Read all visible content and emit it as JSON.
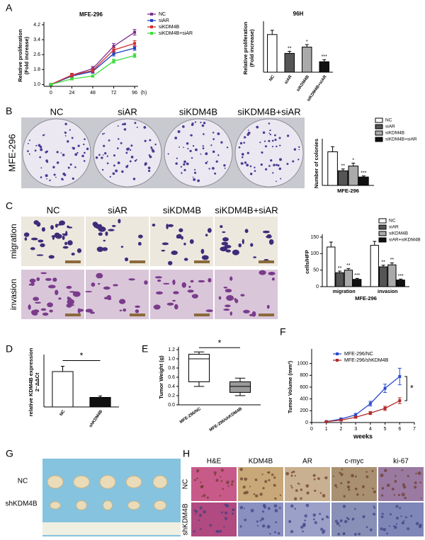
{
  "figure": {
    "panels": [
      "A",
      "B",
      "C",
      "D",
      "E",
      "F",
      "G",
      "H"
    ],
    "B_images": {
      "columns": [
        "NC",
        "siAR",
        "siKDM4B",
        "siKDM4B+siAR"
      ],
      "row": "MFE-296"
    },
    "C_images": {
      "columns": [
        "NC",
        "siAR",
        "siKDM4B",
        "siKDM4B+siAR"
      ],
      "rows": [
        "migration",
        "invasion"
      ]
    },
    "G_image": {
      "rows": [
        "NC",
        "shKDM4B"
      ]
    },
    "H_images": {
      "columns": [
        "H&E",
        "KDM4B",
        "AR",
        "c-myc",
        "ki-67"
      ],
      "rows": [
        "NC",
        "shKDM4B"
      ]
    }
  },
  "chart_data": [
    {
      "type": "line",
      "title": "MFE-296",
      "ylabel": [
        "Relative proliferation",
        "(Fold increase)"
      ],
      "xlabel": "(h)",
      "x": [
        0,
        24,
        48,
        72,
        96
      ],
      "xlim": [
        -8,
        100
      ],
      "xticks": [
        0,
        24,
        48,
        72,
        96
      ],
      "ylim": [
        0.9,
        4.2
      ],
      "yticks": [
        {
          "value": 1,
          "label": "1.0"
        },
        1.8,
        2.6,
        3.4,
        4.2
      ],
      "series": [
        {
          "name": "NC",
          "color": "#7b2d8e",
          "values": [
            1,
            1.5,
            1.85,
            3.05,
            3.8
          ],
          "errors": [
            0.03,
            0.1,
            0.12,
            0.15,
            0.15
          ]
        },
        {
          "name": "siAR",
          "color": "#1f3fbf",
          "values": [
            1,
            1.45,
            1.7,
            2.65,
            2.95
          ],
          "errors": [
            0.03,
            0.08,
            0.1,
            0.12,
            0.12
          ]
        },
        {
          "name": "siKDM4B",
          "color": "#d03030",
          "values": [
            1,
            1.5,
            1.75,
            2.85,
            3.2
          ],
          "errors": [
            0.03,
            0.1,
            0.1,
            0.12,
            0.15
          ]
        },
        {
          "name": "siKDM4B+siAR",
          "color": "#3ddc3d",
          "values": [
            1,
            1.3,
            1.45,
            2.25,
            2.55
          ],
          "errors": [
            0.03,
            0.06,
            0.06,
            0.1,
            0.1
          ]
        }
      ]
    },
    {
      "type": "bar",
      "title": "96H",
      "ylabel": [
        "Relative proliferation",
        "(Fold increase)"
      ],
      "categories": [
        "NC",
        "siAR",
        "siKDM4B",
        "siKDM4B+siAR"
      ],
      "values": [
        3.8,
        2.9,
        3.2,
        2.5
      ],
      "errors": [
        0.2,
        0.1,
        0.12,
        0.1
      ],
      "colors": [
        "#ffffff",
        "#555555",
        "#aaaaaa",
        "#111111"
      ],
      "significance": [
        null,
        "**",
        "*",
        "***"
      ],
      "ylim": [
        2,
        4.3
      ]
    },
    {
      "type": "bar",
      "ylabel": "Number of colonies",
      "xlabel": "MFE-296",
      "ylim": [
        0,
        600
      ],
      "series": [
        {
          "name": "NC",
          "color": "#ffffff",
          "values": [
            460
          ],
          "errors": [
            70
          ],
          "significance": [
            null
          ]
        },
        {
          "name": "siAR",
          "color": "#555555",
          "values": [
            200
          ],
          "errors": [
            25
          ],
          "significance": [
            "**"
          ]
        },
        {
          "name": "siKDM4B",
          "color": "#aaaaaa",
          "values": [
            265
          ],
          "errors": [
            40
          ],
          "significance": [
            "*"
          ]
        },
        {
          "name": "siKDM4B+siAR",
          "color": "#111111",
          "values": [
            115
          ],
          "errors": [
            15
          ],
          "significance": [
            "***"
          ]
        }
      ]
    },
    {
      "type": "bar",
      "ylabel": "cells/HFP",
      "xlabel": "MFE-296",
      "categories": [
        "migration",
        "invasion"
      ],
      "ylim": [
        0,
        150
      ],
      "yticks": [
        0,
        50,
        100,
        150
      ],
      "series": [
        {
          "name": "NC",
          "color": "#ffffff",
          "values": [
            120,
            125
          ],
          "errors": [
            15,
            12
          ],
          "significance": [
            null,
            null
          ]
        },
        {
          "name": "siAR",
          "color": "#555555",
          "values": [
            42,
            60
          ],
          "errors": [
            5,
            5
          ],
          "significance": [
            "**",
            "**"
          ]
        },
        {
          "name": "siKDM4B",
          "color": "#aaaaaa",
          "values": [
            50,
            66
          ],
          "errors": [
            5,
            6
          ],
          "significance": [
            "**",
            "**"
          ]
        },
        {
          "name": "siAR+siKDM4B",
          "color": "#111111",
          "values": [
            22,
            20
          ],
          "errors": [
            3,
            3
          ],
          "significance": [
            "***",
            "***"
          ]
        }
      ]
    },
    {
      "type": "bar",
      "ylabel": [
        "relative KDM4B expression",
        "2⁻ΔΔCt"
      ],
      "categories": [
        "NC",
        "shKDM4B"
      ],
      "values": [
        1.0,
        0.27
      ],
      "errors": [
        0.15,
        0.04
      ],
      "colors": [
        "#ffffff",
        "#111111"
      ],
      "ylim": [
        0,
        1.4
      ],
      "annotation": "*"
    },
    {
      "type": "box",
      "ylabel": "Tumor Weight (g)",
      "categories": [
        "MFE-296/NC",
        "MFE-296/shKDM4B"
      ],
      "stats": [
        {
          "min": 0.4,
          "q1": 0.5,
          "median": 1.0,
          "q3": 1.1,
          "max": 1.15
        },
        {
          "min": 0.2,
          "q1": 0.27,
          "median": 0.4,
          "q3": 0.5,
          "max": 0.58
        }
      ],
      "ylim": [
        0,
        1.2
      ],
      "yticks": [
        {
          "value": 0,
          "label": "0.0"
        },
        0.2,
        0.4,
        0.6,
        0.8,
        {
          "value": 1,
          "label": "1.0"
        },
        1.2
      ],
      "annotation": "*"
    },
    {
      "type": "line",
      "ylabel": "Tumor Volume (mm³)",
      "xlabel": "weeks",
      "x": [
        1,
        2,
        3,
        4,
        5,
        6
      ],
      "xlim": [
        0,
        7
      ],
      "xticks": [
        0,
        1,
        2,
        3,
        4,
        5,
        6,
        7
      ],
      "ylim": [
        0,
        1200
      ],
      "yticks": [
        0,
        200,
        400,
        600,
        800,
        1000
      ],
      "annotation": "*",
      "series": [
        {
          "name": "MFE-296/NC",
          "color": "#2a4bd0",
          "values": [
            15,
            60,
            130,
            320,
            580,
            780
          ],
          "errors": [
            5,
            15,
            25,
            40,
            70,
            140
          ]
        },
        {
          "name": "MFE-296/shKDM4B",
          "color": "#b02a2a",
          "values": [
            15,
            40,
            90,
            160,
            240,
            370
          ],
          "errors": [
            5,
            10,
            15,
            25,
            35,
            50
          ]
        }
      ]
    }
  ]
}
